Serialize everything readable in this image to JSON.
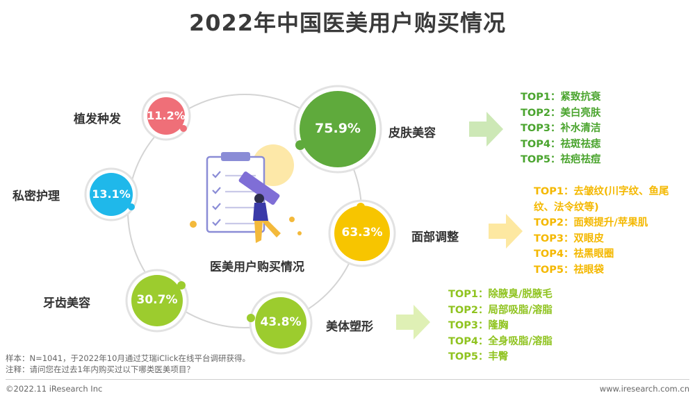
{
  "title": "2022年中国医美用户购买情况",
  "center_label": "医美用户购买情况",
  "colors": {
    "skin": "#5faa3c",
    "face": "#f7c500",
    "body": "#9ccc2e",
    "teeth": "#9ccc2e",
    "private": "#1fb8ea",
    "hair": "#ef6f78",
    "skin_text": "#4aa42e",
    "face_text": "#f4b800",
    "body_text": "#8fc31f"
  },
  "chart_data": {
    "type": "bubble",
    "title": "2022年中国医美用户购买情况",
    "categories": [
      "皮肤美容",
      "面部调整",
      "美体塑形",
      "牙齿美容",
      "私密护理",
      "植发种发"
    ],
    "values": [
      75.9,
      63.3,
      43.8,
      30.7,
      13.1,
      11.2
    ],
    "unit": "%"
  },
  "categories": {
    "skin": {
      "label": "皮肤美容",
      "value": "75.9%"
    },
    "face": {
      "label": "面部调整",
      "value": "63.3%"
    },
    "body": {
      "label": "美体塑形",
      "value": "43.8%"
    },
    "teeth": {
      "label": "牙齿美容",
      "value": "30.7%"
    },
    "private": {
      "label": "私密护理",
      "value": "13.1%"
    },
    "hair": {
      "label": "植发种发",
      "value": "11.2%"
    }
  },
  "top_lists": {
    "skin": [
      "TOP1：紧致抗衰",
      "TOP2：美白亮肤",
      "TOP3：补水清洁",
      "TOP4：祛斑祛痣",
      "TOP5：祛疤祛痘"
    ],
    "face": [
      "TOP1：去皱纹(川字纹、鱼尾",
      "纹、法令纹等)",
      "TOP2：面颊提升/苹果肌",
      "TOP3：双眼皮",
      "TOP4：祛黑眼圈",
      "TOP5：祛眼袋"
    ],
    "body": [
      "TOP1：除腋臭/脱腋毛",
      "TOP2：局部吸脂/溶脂",
      "TOP3：隆胸",
      "TOP4：全身吸脂/溶脂",
      "TOP5：丰臀"
    ]
  },
  "notes": {
    "sample": "样本：N=1041，于2022年10月通过艾瑞iClick在线平台调研获得。",
    "comment": "注释：请问您在过去1年内购买过以下哪类医美项目？"
  },
  "footer": {
    "copyright": "©2022.11 iResearch Inc",
    "website": "www.iresearch.com.cn"
  }
}
